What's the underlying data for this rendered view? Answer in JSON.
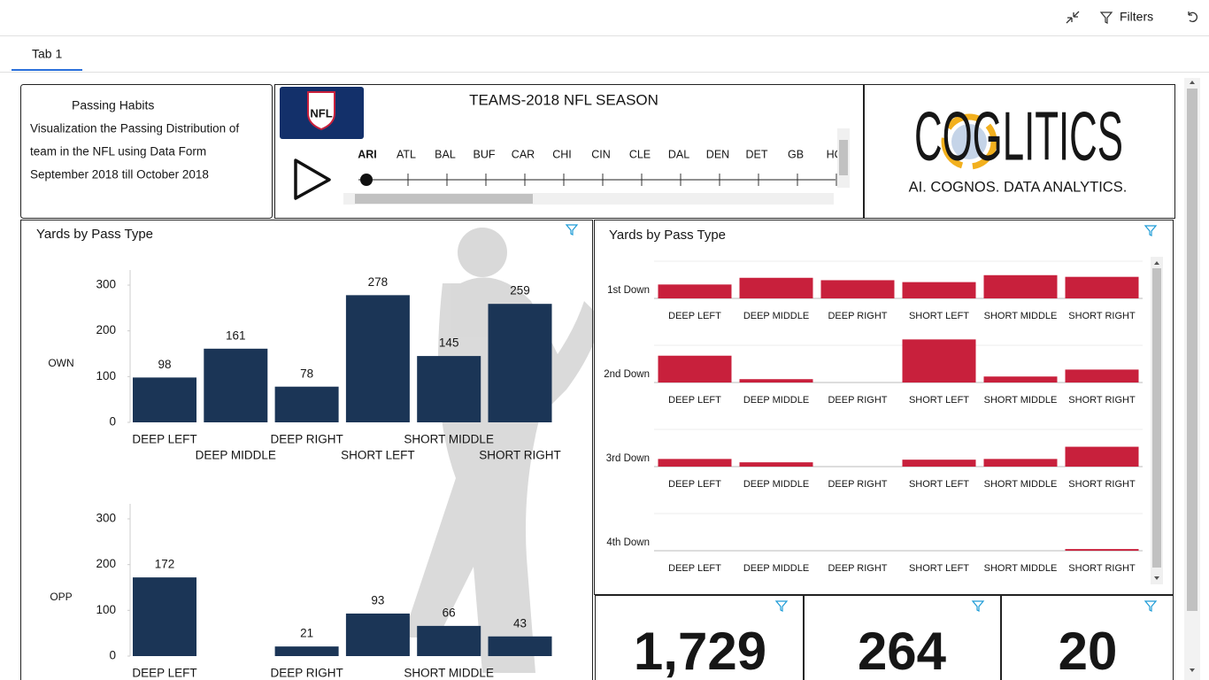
{
  "toolbar": {
    "filters": "Filters"
  },
  "tabs": [
    "Tab 1"
  ],
  "info": {
    "title": "Passing Habits",
    "description": [
      "Visualization the Passing  Distribution of",
      "team in the NFL using Data Form"
    ],
    "period": "September 2018 till October 2018"
  },
  "slider": {
    "logo": "NFL",
    "title": "TEAMS-2018 NFL SEASON",
    "teams": [
      "ARI",
      "ATL",
      "BAL",
      "BUF",
      "CAR",
      "CHI",
      "CIN",
      "CLE",
      "DAL",
      "DEN",
      "DET",
      "GB",
      "HO"
    ]
  },
  "brand": {
    "name": "COGLITICS",
    "tagline": "AI. COGNOS. DATA ANALYTICS."
  },
  "chart_data": [
    {
      "type": "bar",
      "title": "Yards by Pass Type",
      "categories": [
        "DEEP LEFT",
        "DEEP MIDDLE",
        "DEEP RIGHT",
        "SHORT LEFT",
        "SHORT MIDDLE",
        "SHORT RIGHT"
      ],
      "color": "#1b3556",
      "label_color": "#c0392b",
      "ylim": [
        0,
        330
      ],
      "yticks": [
        0,
        100,
        200,
        300
      ],
      "series": [
        {
          "name": "OWN",
          "values": [
            98,
            161,
            78,
            278,
            145,
            259
          ]
        },
        {
          "name": "OPP",
          "values": [
            172,
            null,
            21,
            93,
            66,
            43
          ]
        }
      ]
    },
    {
      "type": "bar",
      "title": "Yards by Pass Type",
      "categories": [
        "DEEP LEFT",
        "DEEP MIDDLE",
        "DEEP RIGHT",
        "SHORT LEFT",
        "SHORT MIDDLE",
        "SHORT RIGHT"
      ],
      "color": "#c8203c",
      "series": [
        {
          "name": "1st Down",
          "values": [
            58,
            86,
            76,
            68,
            97,
            90
          ]
        },
        {
          "name": "2nd Down",
          "values": [
            112,
            14,
            0,
            180,
            25,
            54
          ]
        },
        {
          "name": "3rd Down",
          "values": [
            32,
            18,
            0,
            29,
            32,
            83
          ]
        },
        {
          "name": "4th Down",
          "values": [
            0,
            0,
            0,
            0,
            0,
            7
          ]
        }
      ]
    }
  ],
  "kpis": [
    "1,729",
    "264",
    "20"
  ]
}
